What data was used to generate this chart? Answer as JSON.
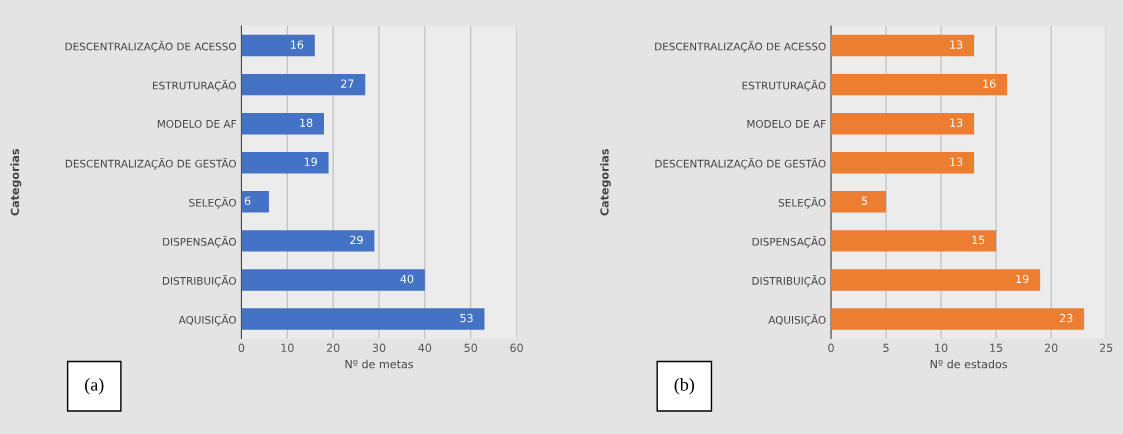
{
  "chart_data": [
    {
      "type": "bar",
      "orientation": "horizontal",
      "categories": [
        "DESCENTRALIZAÇÃO DE ACESSO",
        "ESTRUTURAÇÃO",
        "MODELO DE AF",
        "DESCENTRALIZAÇÃO DE GESTÃO",
        "SELEÇÃO",
        "DISPENSAÇÃO",
        "DISTRIBUIÇÃO",
        "AQUISIÇÃO"
      ],
      "values": [
        16,
        27,
        18,
        19,
        6,
        29,
        40,
        53
      ],
      "color": "#4472c4",
      "data_labels": true,
      "xlim": [
        0,
        60
      ],
      "xticks": [
        0,
        10,
        20,
        30,
        40,
        50,
        60
      ],
      "grid": "x",
      "xlabel": "Nº de metas",
      "ylabel": "Categorias",
      "annotations": [
        "(a)"
      ]
    },
    {
      "type": "bar",
      "orientation": "horizontal",
      "categories": [
        "DESCENTRALIZAÇÃO DE ACESSO",
        "ESTRUTURAÇÃO",
        "MODELO DE AF",
        "DESCENTRALIZAÇÃO DE GESTÃO",
        "SELEÇÃO",
        "DISPENSAÇÃO",
        "DISTRIBUIÇÃO",
        "AQUISIÇÃO"
      ],
      "values": [
        13,
        16,
        13,
        13,
        5,
        15,
        19,
        23
      ],
      "color": "#ed7d31",
      "data_labels": true,
      "xlim": [
        0,
        25
      ],
      "xticks": [
        0,
        5,
        10,
        15,
        20,
        25
      ],
      "grid": "x",
      "xlabel": "Nº de estados",
      "ylabel": "Categorias",
      "annotations": [
        "(b)"
      ]
    }
  ]
}
